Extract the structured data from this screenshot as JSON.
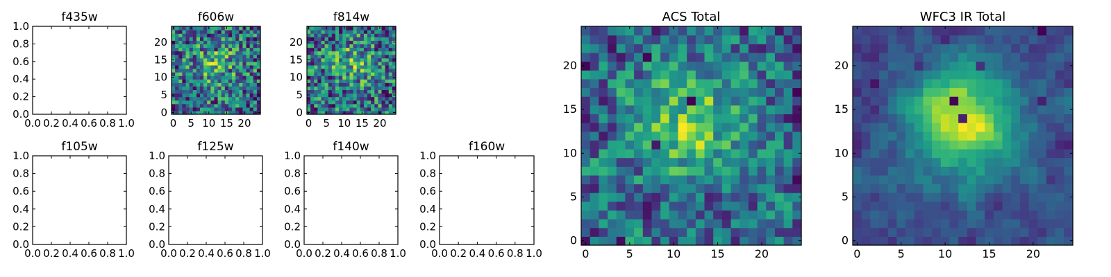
{
  "chart_data": [
    {
      "type": "empty",
      "title": "f435w",
      "xlim": [
        0,
        1
      ],
      "ylim": [
        0,
        1
      ],
      "xticks": [
        "0.0",
        "0.2",
        "0.4",
        "0.6",
        "0.8",
        "1.0"
      ],
      "yticks": [
        "0.0",
        "0.2",
        "0.4",
        "0.6",
        "0.8",
        "1.0"
      ]
    },
    {
      "type": "heatmap",
      "title": "f606w",
      "grid_size": 25,
      "colormap": "viridis",
      "seed": 606,
      "smooth": 0,
      "blob": 0.25,
      "xticks": [
        "0",
        "5",
        "10",
        "15",
        "20"
      ],
      "yticks": [
        "0",
        "5",
        "10",
        "15",
        "20"
      ]
    },
    {
      "type": "heatmap",
      "title": "f814w",
      "grid_size": 25,
      "colormap": "viridis",
      "seed": 814,
      "smooth": 0,
      "blob": 0.25,
      "xticks": [
        "0",
        "5",
        "10",
        "15",
        "20"
      ],
      "yticks": [
        "0",
        "5",
        "10",
        "15",
        "20"
      ]
    },
    {
      "type": "empty",
      "title": "f105w",
      "xlim": [
        0,
        1
      ],
      "ylim": [
        0,
        1
      ],
      "xticks": [
        "0.0",
        "0.2",
        "0.4",
        "0.6",
        "0.8",
        "1.0"
      ],
      "yticks": [
        "0.0",
        "0.2",
        "0.4",
        "0.6",
        "0.8",
        "1.0"
      ]
    },
    {
      "type": "empty",
      "title": "f125w",
      "xlim": [
        0,
        1
      ],
      "ylim": [
        0,
        1
      ],
      "xticks": [
        "0.0",
        "0.2",
        "0.4",
        "0.6",
        "0.8",
        "1.0"
      ],
      "yticks": [
        "0.0",
        "0.2",
        "0.4",
        "0.6",
        "0.8",
        "1.0"
      ]
    },
    {
      "type": "empty",
      "title": "f140w",
      "xlim": [
        0,
        1
      ],
      "ylim": [
        0,
        1
      ],
      "xticks": [
        "0.0",
        "0.2",
        "0.4",
        "0.6",
        "0.8",
        "1.0"
      ],
      "yticks": [
        "0.0",
        "0.2",
        "0.4",
        "0.6",
        "0.8",
        "1.0"
      ]
    },
    {
      "type": "empty",
      "title": "f160w",
      "xlim": [
        0,
        1
      ],
      "ylim": [
        0,
        1
      ],
      "xticks": [
        "0.0",
        "0.2",
        "0.4",
        "0.6",
        "0.8",
        "1.0"
      ],
      "yticks": [
        "0.0",
        "0.2",
        "0.4",
        "0.6",
        "0.8",
        "1.0"
      ]
    },
    {
      "type": "heatmap",
      "title": "ACS Total",
      "grid_size": 25,
      "colormap": "viridis",
      "seed": 2024,
      "smooth": 0.35,
      "blob": 0.35,
      "xticks": [
        "0",
        "5",
        "10",
        "15",
        "20"
      ],
      "yticks": [
        "0",
        "5",
        "10",
        "15",
        "20"
      ]
    },
    {
      "type": "heatmap",
      "title": "WFC3 IR Total",
      "grid_size": 25,
      "colormap": "viridis",
      "seed": 3131,
      "smooth": 0.7,
      "blob": 0.6,
      "xticks": [
        "0",
        "5",
        "10",
        "15",
        "20"
      ],
      "yticks": [
        "0",
        "5",
        "10",
        "15",
        "20"
      ]
    }
  ]
}
